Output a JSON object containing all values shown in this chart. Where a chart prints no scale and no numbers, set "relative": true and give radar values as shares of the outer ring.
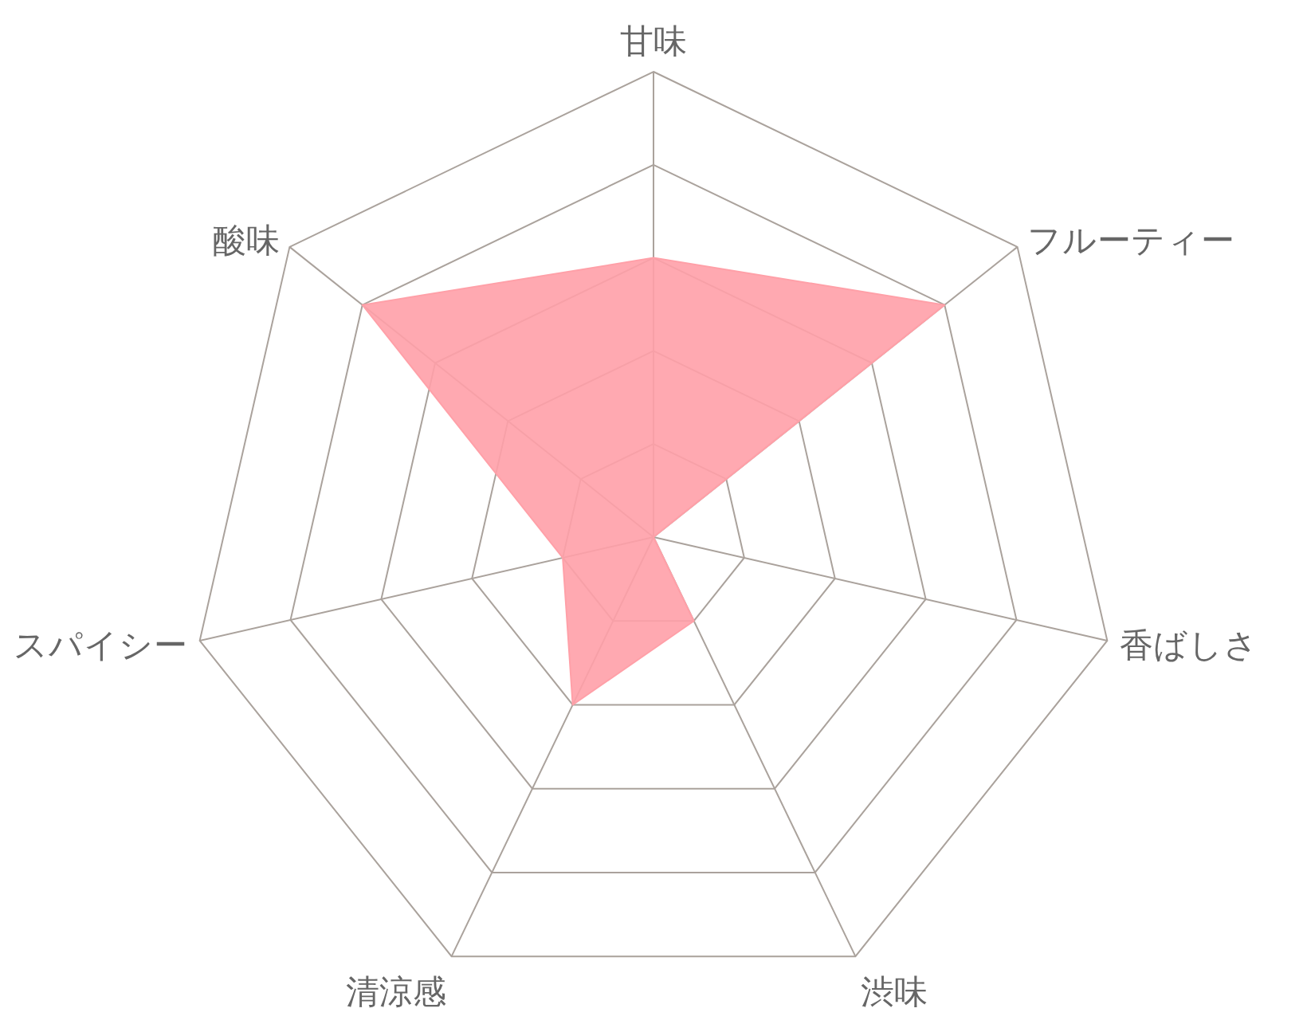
{
  "chart_data": {
    "type": "radar",
    "relative": true,
    "grid": true,
    "categories": [
      "甘味",
      "フルーティー",
      "香ばしさ",
      "渋味",
      "清涼感",
      "スパイシー",
      "酸味"
    ],
    "series": [
      {
        "color": "#ffa0a8",
        "values": [
          0.6,
          0.8,
          0,
          0.2,
          0.4,
          0.2,
          0.8
        ]
      }
    ]
  }
}
